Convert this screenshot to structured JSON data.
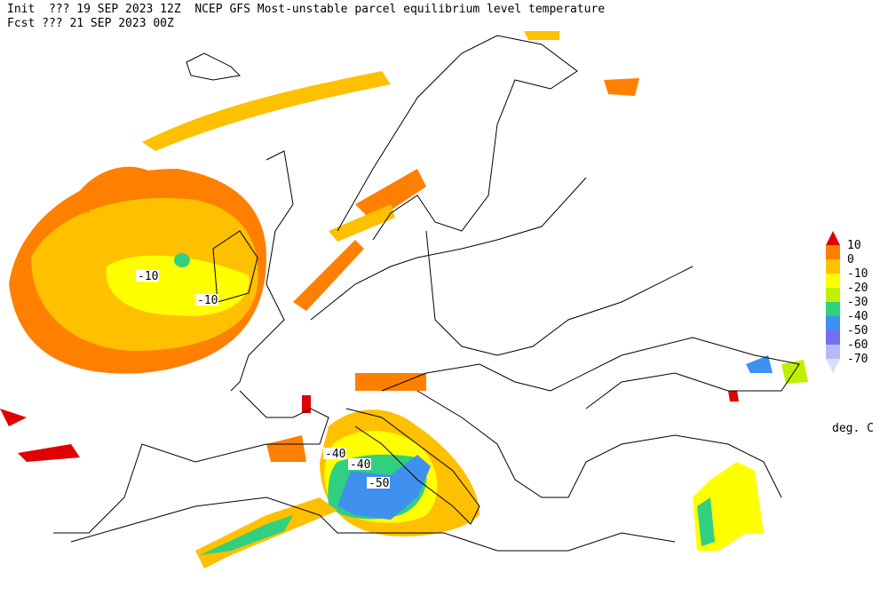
{
  "header": {
    "line1": "Init  ??? 19 SEP 2023 12Z  NCEP GFS Most-unstable parcel equilibrium level temperature",
    "line2": "Fcst ??? 21 SEP 2023 00Z"
  },
  "legend": {
    "ticks": [
      10,
      0,
      -10,
      -20,
      -30,
      -40,
      -50,
      -60,
      -70
    ],
    "colors": [
      "#e00000",
      "#ff8000",
      "#ffc000",
      "#ffff00",
      "#c0f000",
      "#30d080",
      "#4090f0",
      "#7070f0",
      "#b8b8ff",
      "#dcdcff"
    ],
    "unit": "deg. C"
  },
  "contour_labels": [
    "-10",
    "-10",
    "-40",
    "-40",
    "-50"
  ]
}
